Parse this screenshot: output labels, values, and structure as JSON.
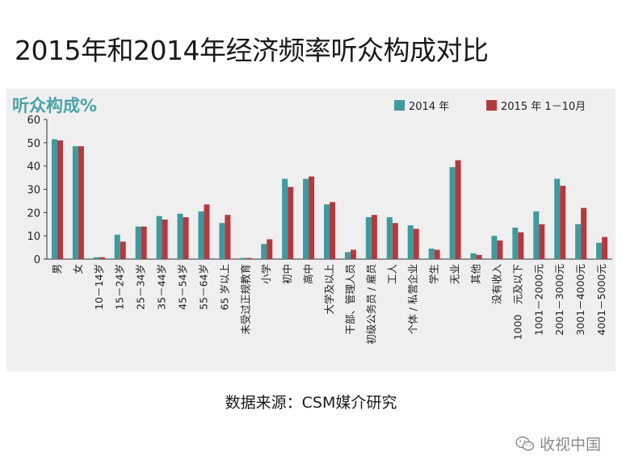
{
  "title": "2015年和2014年经济频率听众构成对比",
  "source": "数据来源：CSM媒介研究",
  "watermark": {
    "text": "收视中国",
    "icon": "wechat-icon"
  },
  "colors": {
    "series_2014": "#3f9a9e",
    "series_2015": "#b23a3f"
  },
  "chart_data": {
    "type": "bar",
    "title": "",
    "xlabel": "",
    "ylabel": "听众构成%",
    "ylim": [
      0,
      60
    ],
    "yticks": [
      0,
      10,
      20,
      30,
      40,
      50,
      60
    ],
    "grid": false,
    "legend": "top-right",
    "categories": [
      "男",
      "女",
      "10－14岁",
      "15－24岁",
      "25－34岁",
      "35－44岁",
      "45－54岁",
      "55－64岁",
      "65 岁以上",
      "未受过正规教育",
      "小学",
      "初中",
      "高中",
      "大学及以上",
      "干部、管理人员",
      "初级公务员 / 雇员",
      "工人",
      "个体 / 私营企业",
      "学生",
      "无业",
      "其他",
      "没有收入",
      "1000　元及以下",
      "1001－2000元",
      "2001－3000元",
      "3001－4000元",
      "4001－5000元"
    ],
    "series": [
      {
        "name": "2014 年",
        "values": [
          51.5,
          48.5,
          0.8,
          10.5,
          14,
          18.5,
          19.5,
          20.5,
          15.5,
          0.5,
          6.5,
          34.5,
          34.5,
          23.5,
          3,
          18,
          18,
          14.5,
          4.5,
          39.5,
          2.5,
          10,
          13.5,
          20.5,
          34.5,
          15,
          7
        ]
      },
      {
        "name": "2015 年 1－10月",
        "values": [
          51,
          48.5,
          0.8,
          7.5,
          14,
          17,
          18,
          23.5,
          19,
          0.5,
          8.5,
          31,
          35.5,
          24.5,
          4,
          19,
          15.5,
          13,
          4,
          42.5,
          1.8,
          8,
          11.5,
          15,
          31.5,
          22,
          9.5
        ]
      }
    ]
  }
}
